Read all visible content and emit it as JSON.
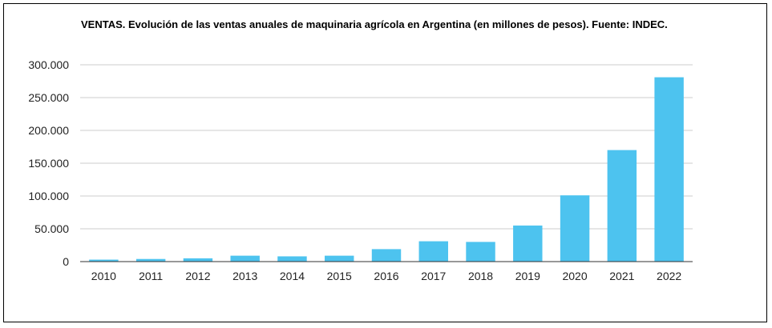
{
  "chart_data": {
    "type": "bar",
    "title": "VENTAS. Evolución de las ventas anuales de maquinaria agrícola en Argentina (en millones de pesos). Fuente: INDEC.",
    "xlabel": "",
    "ylabel": "",
    "categories": [
      "2010",
      "2011",
      "2012",
      "2013",
      "2014",
      "2015",
      "2016",
      "2017",
      "2018",
      "2019",
      "2020",
      "2021",
      "2022"
    ],
    "series": [
      {
        "values": [
          3000,
          4000,
          5000,
          9000,
          8000,
          9000,
          19000,
          31000,
          30000,
          55000,
          101000,
          170000,
          281000
        ]
      }
    ],
    "ylim": [
      0,
      300000
    ],
    "yticks": [
      0,
      50000,
      100000,
      150000,
      200000,
      250000,
      300000
    ],
    "ytick_labels": [
      "0",
      "50.000",
      "100.000",
      "150.000",
      "200.000",
      "250.000",
      "300.000"
    ],
    "grid": true,
    "legend": "none",
    "colors": {
      "bar": "#4dc3ef",
      "grid": "#cccccc",
      "axis": "#333333"
    }
  }
}
